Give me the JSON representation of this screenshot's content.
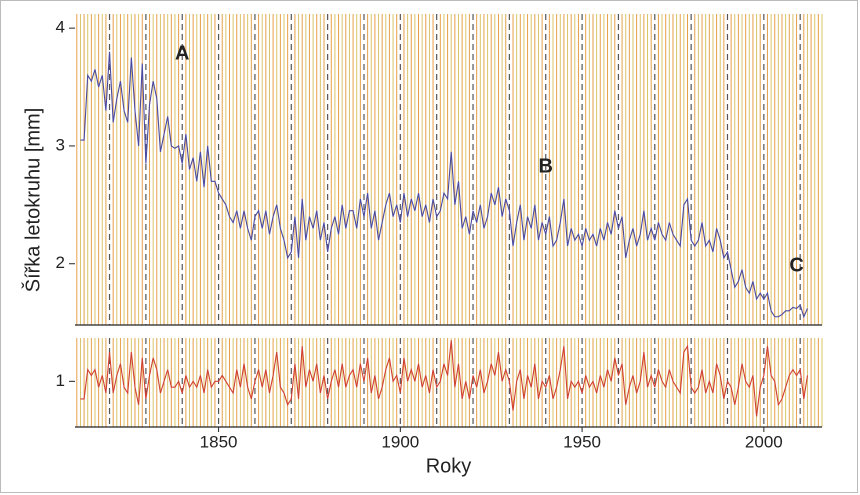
{
  "chart_data": [
    {
      "type": "line",
      "ylabel": "Šířka letokruhu [mm]",
      "color": "#4a4aa0",
      "x": [
        1812,
        1813,
        1814,
        1815,
        1816,
        1817,
        1818,
        1819,
        1820,
        1821,
        1822,
        1823,
        1824,
        1825,
        1826,
        1827,
        1828,
        1829,
        1830,
        1831,
        1832,
        1833,
        1834,
        1835,
        1836,
        1837,
        1838,
        1839,
        1840,
        1841,
        1842,
        1843,
        1844,
        1845,
        1846,
        1847,
        1848,
        1849,
        1850,
        1851,
        1852,
        1853,
        1854,
        1855,
        1856,
        1857,
        1858,
        1859,
        1860,
        1861,
        1862,
        1863,
        1864,
        1865,
        1866,
        1867,
        1868,
        1869,
        1870,
        1871,
        1872,
        1873,
        1874,
        1875,
        1876,
        1877,
        1878,
        1879,
        1880,
        1881,
        1882,
        1883,
        1884,
        1885,
        1886,
        1887,
        1888,
        1889,
        1890,
        1891,
        1892,
        1893,
        1894,
        1895,
        1896,
        1897,
        1898,
        1899,
        1900,
        1901,
        1902,
        1903,
        1904,
        1905,
        1906,
        1907,
        1908,
        1909,
        1910,
        1911,
        1912,
        1913,
        1914,
        1915,
        1916,
        1917,
        1918,
        1919,
        1920,
        1921,
        1922,
        1923,
        1924,
        1925,
        1926,
        1927,
        1928,
        1929,
        1930,
        1931,
        1932,
        1933,
        1934,
        1935,
        1936,
        1937,
        1938,
        1939,
        1940,
        1941,
        1942,
        1943,
        1944,
        1945,
        1946,
        1947,
        1948,
        1949,
        1950,
        1951,
        1952,
        1953,
        1954,
        1955,
        1956,
        1957,
        1958,
        1959,
        1960,
        1961,
        1962,
        1963,
        1964,
        1965,
        1966,
        1967,
        1968,
        1969,
        1970,
        1971,
        1972,
        1973,
        1974,
        1975,
        1976,
        1977,
        1978,
        1979,
        1980,
        1981,
        1982,
        1983,
        1984,
        1985,
        1986,
        1987,
        1988,
        1989,
        1990,
        1991,
        1992,
        1993,
        1994,
        1995,
        1996,
        1997,
        1998,
        1999,
        2000,
        2001,
        2002,
        2003,
        2004,
        2005,
        2006,
        2007,
        2008,
        2009,
        2010,
        2011,
        2012
      ],
      "values": [
        3.05,
        3.05,
        3.6,
        3.55,
        3.65,
        3.5,
        3.6,
        3.3,
        3.8,
        3.2,
        3.4,
        3.55,
        3.3,
        3.2,
        3.75,
        3.3,
        3.0,
        3.7,
        2.85,
        3.35,
        3.55,
        3.4,
        2.95,
        3.1,
        3.25,
        3.0,
        2.98,
        3.0,
        2.85,
        3.1,
        2.8,
        2.9,
        2.7,
        2.95,
        2.65,
        3.0,
        2.7,
        2.7,
        2.6,
        2.55,
        2.5,
        2.4,
        2.35,
        2.45,
        2.3,
        2.45,
        2.3,
        2.2,
        2.4,
        2.45,
        2.3,
        2.45,
        2.25,
        2.4,
        2.5,
        2.3,
        2.2,
        2.05,
        2.1,
        2.4,
        2.05,
        2.55,
        2.2,
        2.4,
        2.3,
        2.45,
        2.2,
        2.35,
        2.1,
        2.3,
        2.4,
        2.25,
        2.5,
        2.3,
        2.45,
        2.45,
        2.3,
        2.55,
        2.4,
        2.6,
        2.3,
        2.45,
        2.2,
        2.35,
        2.5,
        2.6,
        2.4,
        2.5,
        2.35,
        2.6,
        2.4,
        2.55,
        2.45,
        2.6,
        2.4,
        2.5,
        2.35,
        2.55,
        2.4,
        2.45,
        2.6,
        2.55,
        2.95,
        2.5,
        2.7,
        2.3,
        2.4,
        2.25,
        2.45,
        2.35,
        2.5,
        2.3,
        2.4,
        2.6,
        2.5,
        2.65,
        2.4,
        2.55,
        2.45,
        2.15,
        2.35,
        2.5,
        2.2,
        2.4,
        2.3,
        2.5,
        2.2,
        2.35,
        2.25,
        2.4,
        2.15,
        2.2,
        2.35,
        2.55,
        2.15,
        2.3,
        2.2,
        2.25,
        2.15,
        2.3,
        2.2,
        2.25,
        2.15,
        2.3,
        2.2,
        2.35,
        2.25,
        2.45,
        2.3,
        2.4,
        2.05,
        2.2,
        2.3,
        2.15,
        2.25,
        2.45,
        2.2,
        2.3,
        2.2,
        2.35,
        2.25,
        2.2,
        2.35,
        2.25,
        2.2,
        2.15,
        2.5,
        2.55,
        2.2,
        2.15,
        2.2,
        2.35,
        2.15,
        2.2,
        2.1,
        2.3,
        2.2,
        2.05,
        2.1,
        1.95,
        1.8,
        1.85,
        1.95,
        1.8,
        1.75,
        1.85,
        1.7,
        1.75,
        1.7,
        1.75,
        1.6,
        1.55,
        1.55,
        1.57,
        1.6,
        1.6,
        1.63,
        1.62,
        1.65,
        1.55,
        1.62
      ],
      "xlim": [
        1810.5,
        2016
      ],
      "ylim": [
        1.48,
        4.12
      ],
      "yticks": [
        2,
        3,
        4
      ],
      "annotations": [
        {
          "text": "A",
          "x": 1840,
          "y": 3.78
        },
        {
          "text": "B",
          "x": 1940,
          "y": 2.82
        },
        {
          "text": "C",
          "x": 2009,
          "y": 1.98
        }
      ]
    },
    {
      "type": "line",
      "xlabel": "Roky",
      "color": "#d04030",
      "x": [
        1812,
        1813,
        1814,
        1815,
        1816,
        1817,
        1818,
        1819,
        1820,
        1821,
        1822,
        1823,
        1824,
        1825,
        1826,
        1827,
        1828,
        1829,
        1830,
        1831,
        1832,
        1833,
        1834,
        1835,
        1836,
        1837,
        1838,
        1839,
        1840,
        1841,
        1842,
        1843,
        1844,
        1845,
        1846,
        1847,
        1848,
        1849,
        1850,
        1851,
        1852,
        1853,
        1854,
        1855,
        1856,
        1857,
        1858,
        1859,
        1860,
        1861,
        1862,
        1863,
        1864,
        1865,
        1866,
        1867,
        1868,
        1869,
        1870,
        1871,
        1872,
        1873,
        1874,
        1875,
        1876,
        1877,
        1878,
        1879,
        1880,
        1881,
        1882,
        1883,
        1884,
        1885,
        1886,
        1887,
        1888,
        1889,
        1890,
        1891,
        1892,
        1893,
        1894,
        1895,
        1896,
        1897,
        1898,
        1899,
        1900,
        1901,
        1902,
        1903,
        1904,
        1905,
        1906,
        1907,
        1908,
        1909,
        1910,
        1911,
        1912,
        1913,
        1914,
        1915,
        1916,
        1917,
        1918,
        1919,
        1920,
        1921,
        1922,
        1923,
        1924,
        1925,
        1926,
        1927,
        1928,
        1929,
        1930,
        1931,
        1932,
        1933,
        1934,
        1935,
        1936,
        1937,
        1938,
        1939,
        1940,
        1941,
        1942,
        1943,
        1944,
        1945,
        1946,
        1947,
        1948,
        1949,
        1950,
        1951,
        1952,
        1953,
        1954,
        1955,
        1956,
        1957,
        1958,
        1959,
        1960,
        1961,
        1962,
        1963,
        1964,
        1965,
        1966,
        1967,
        1968,
        1969,
        1970,
        1971,
        1972,
        1973,
        1974,
        1975,
        1976,
        1977,
        1978,
        1979,
        1980,
        1981,
        1982,
        1983,
        1984,
        1985,
        1986,
        1987,
        1988,
        1989,
        1990,
        1991,
        1992,
        1993,
        1994,
        1995,
        1996,
        1997,
        1998,
        1999,
        2000,
        2001,
        2002,
        2003,
        2004,
        2005,
        2006,
        2007,
        2008,
        2009,
        2010,
        2011,
        2012
      ],
      "values": [
        0.85,
        0.85,
        1.1,
        1.05,
        1.1,
        0.95,
        1.05,
        0.9,
        1.25,
        0.9,
        1.05,
        1.15,
        0.95,
        0.9,
        1.25,
        0.95,
        0.8,
        1.2,
        0.85,
        1.05,
        1.2,
        1.1,
        0.9,
        1.0,
        1.1,
        0.95,
        0.95,
        1.0,
        0.9,
        1.05,
        0.95,
        1.0,
        0.95,
        1.05,
        0.9,
        1.1,
        0.95,
        1.0,
        1.0,
        1.05,
        1.0,
        0.95,
        0.9,
        1.1,
        0.95,
        1.15,
        0.95,
        0.85,
        1.0,
        1.1,
        0.95,
        1.1,
        0.9,
        1.05,
        1.25,
        0.95,
        0.9,
        0.8,
        0.85,
        1.15,
        0.85,
        1.3,
        0.95,
        1.1,
        1.0,
        1.15,
        0.9,
        1.05,
        0.85,
        1.0,
        1.1,
        0.95,
        1.15,
        0.95,
        1.05,
        1.1,
        0.95,
        1.15,
        1.0,
        1.2,
        0.9,
        1.05,
        0.85,
        0.95,
        1.1,
        1.2,
        1.0,
        1.05,
        0.9,
        1.2,
        1.0,
        1.1,
        1.0,
        1.15,
        0.95,
        1.05,
        0.9,
        1.1,
        0.95,
        1.0,
        1.15,
        1.05,
        1.35,
        0.95,
        1.15,
        0.85,
        1.0,
        0.85,
        1.05,
        0.95,
        1.1,
        0.9,
        1.0,
        1.15,
        1.05,
        1.25,
        1.0,
        1.1,
        1.0,
        0.75,
        1.0,
        1.1,
        0.85,
        1.05,
        0.95,
        1.15,
        0.85,
        1.0,
        0.95,
        1.05,
        0.85,
        0.95,
        1.1,
        1.3,
        0.85,
        1.0,
        0.95,
        1.0,
        0.9,
        1.05,
        0.95,
        1.0,
        0.9,
        1.05,
        0.95,
        1.1,
        1.0,
        1.2,
        1.05,
        1.15,
        0.8,
        0.95,
        1.05,
        0.9,
        1.0,
        1.25,
        0.95,
        1.05,
        0.95,
        1.1,
        1.0,
        0.95,
        1.1,
        1.0,
        0.95,
        0.9,
        1.25,
        1.3,
        0.95,
        0.9,
        0.95,
        1.1,
        0.9,
        1.0,
        0.9,
        1.15,
        1.05,
        0.85,
        1.0,
        0.95,
        0.8,
        0.95,
        1.15,
        1.0,
        0.95,
        1.05,
        0.7,
        0.95,
        1.05,
        1.3,
        1.05,
        1.0,
        0.8,
        0.85,
        0.95,
        1.05,
        1.1,
        1.05,
        1.1,
        0.85,
        1.05
      ],
      "xlim": [
        1810.5,
        2016
      ],
      "ylim": [
        0.61,
        1.37
      ],
      "yticks": [
        1
      ],
      "xticks": [
        1850,
        1900,
        1950,
        2000
      ]
    }
  ]
}
